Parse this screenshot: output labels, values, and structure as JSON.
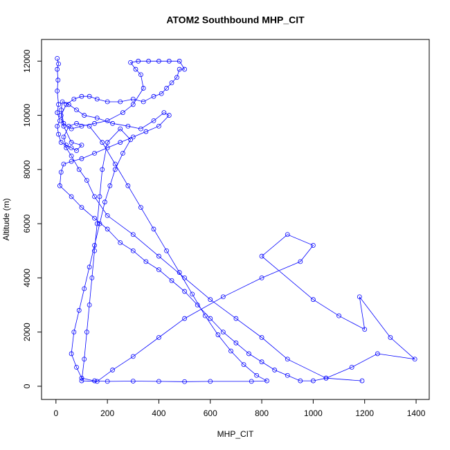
{
  "chart_data": {
    "type": "line",
    "title": "ATOM2 Southbound MHP_CIT",
    "x_label": "MHP_CIT",
    "y_label": "Altitude (m)",
    "color": "#0000ff",
    "marker": "circle",
    "x": [
      5,
      10,
      5,
      8,
      5,
      10,
      5,
      15,
      5,
      10,
      20,
      40,
      60,
      80,
      100,
      60,
      30,
      20,
      40,
      70,
      100,
      130,
      160,
      200,
      250,
      300,
      340,
      380,
      410,
      430,
      450,
      470,
      480,
      500,
      480,
      440,
      400,
      360,
      320,
      290,
      310,
      330,
      340,
      300,
      260,
      200,
      150,
      100,
      60,
      30,
      20,
      25,
      50,
      80,
      110,
      160,
      220,
      280,
      330,
      380,
      420,
      440,
      400,
      350,
      300,
      250,
      200,
      150,
      100,
      60,
      30,
      20,
      15,
      60,
      100,
      150,
      200,
      250,
      300,
      350,
      400,
      450,
      500,
      550,
      600,
      650,
      700,
      750,
      800,
      850,
      900,
      950,
      1000,
      1050,
      900,
      800,
      700,
      600,
      500,
      400,
      300,
      200,
      150,
      120,
      90,
      60,
      40,
      30,
      50,
      80,
      130,
      180,
      230,
      280,
      330,
      380,
      430,
      480,
      530,
      580,
      630,
      680,
      730,
      780,
      820,
      760,
      600,
      500,
      400,
      300,
      200,
      150,
      100,
      80,
      60,
      70,
      90,
      110,
      130,
      150,
      170,
      190,
      210,
      230,
      260,
      290,
      250,
      200,
      180,
      170,
      160,
      150,
      140,
      130,
      120,
      110,
      100,
      160,
      220,
      300,
      400,
      500,
      650,
      800,
      950,
      1000,
      900,
      800,
      1000,
      1100,
      1200,
      1180,
      1300,
      1395,
      1250,
      1150,
      1050,
      1190
    ],
    "values": [
      12100,
      11900,
      11700,
      11300,
      10900,
      10400,
      10100,
      9800,
      9600,
      9300,
      9000,
      8900,
      8800,
      8700,
      8900,
      9000,
      9600,
      10000,
      10400,
      10600,
      10700,
      10700,
      10600,
      10500,
      10500,
      10600,
      10500,
      10700,
      10800,
      11000,
      11200,
      11400,
      11700,
      11700,
      12000,
      12000,
      12000,
      12000,
      12000,
      11950,
      11700,
      11500,
      11000,
      10400,
      10100,
      9800,
      9700,
      9600,
      9500,
      9700,
      10200,
      10500,
      10400,
      10200,
      10000,
      9900,
      9700,
      9600,
      9500,
      9800,
      10100,
      10000,
      9600,
      9400,
      9200,
      9000,
      8800,
      8600,
      8400,
      8300,
      8200,
      7900,
      7400,
      7000,
      6600,
      6200,
      5800,
      5300,
      5000,
      4600,
      4300,
      3900,
      3500,
      3000,
      2500,
      2000,
      1600,
      1200,
      900,
      600,
      400,
      200,
      200,
      300,
      1000,
      1800,
      2500,
      3200,
      4000,
      4800,
      5600,
      6300,
      7000,
      7600,
      8000,
      8500,
      8800,
      9200,
      9600,
      9700,
      9600,
      9000,
      8200,
      7400,
      6600,
      5800,
      5000,
      4200,
      3400,
      2600,
      1900,
      1300,
      800,
      400,
      200,
      180,
      180,
      170,
      180,
      190,
      180,
      200,
      300,
      700,
      1200,
      2000,
      2800,
      3600,
      4400,
      5200,
      6000,
      6800,
      7400,
      8000,
      8600,
      9100,
      9500,
      9000,
      8000,
      7000,
      6000,
      5000,
      4000,
      3000,
      2000,
      1000,
      200,
      180,
      600,
      1100,
      1800,
      2500,
      3300,
      4000,
      4600,
      5200,
      5600,
      4800,
      3200,
      2600,
      2100,
      3300,
      1800,
      1000,
      1200,
      700,
      300,
      200
    ],
    "xlim": [
      -56,
      1451
    ],
    "ylim": [
      -488,
      12800
    ],
    "xticks": [
      0,
      200,
      400,
      600,
      800,
      1000,
      1200,
      1400
    ],
    "yticks": [
      0,
      2000,
      4000,
      6000,
      8000,
      10000,
      12000
    ]
  }
}
